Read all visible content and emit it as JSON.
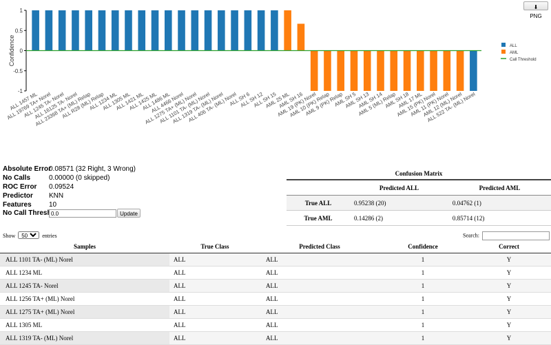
{
  "export_button": {
    "label": "PNG",
    "icon": "download-icon"
  },
  "chart_data": {
    "type": "bar",
    "ylabel": "Confidence",
    "ylim": [
      -1,
      1
    ],
    "yticks": [
      "1",
      "0.5",
      "0",
      "-0.5",
      "-1"
    ],
    "call_threshold": 0,
    "categories": [
      "ALL 1457 ML",
      "ALL 19769 TA+ Norel",
      "ALL 1245 TA- Norel",
      "ALL 16125 TA- Norel",
      "ALL 23368 TA+ (ML) Relap",
      "ALL R28 (ML) Relap",
      "ALL 1234 ML",
      "ALL 1305 ML",
      "ALL 1421 ML",
      "ALL 1425 ML",
      "ALL 1486 ML",
      "ALL 4466 Norel",
      "ALL 1275 TA+ (ML) Norel",
      "ALL 1101 TA- (ML) Norel",
      "ALL 1319 TA- (ML) Norel",
      "ALL 406 TA- (ML) Norel",
      "ALL SH 6",
      "ALL SH 12",
      "ALL SH 15",
      "AML 25 ML",
      "AML SH 16",
      "AML 19 (PK) Norel",
      "AML 10 (PK) Relap",
      "AML 9 (PK) Relap",
      "AML SH 5",
      "AML SH 13",
      "AML SH 14",
      "AML 5 (ML) Relap",
      "AML SH 18",
      "AML 17 ML",
      "AML 15 (PK) Norel",
      "AML 11 (PK) Norel",
      "AML 12 (ML) Norel",
      "ALL 522 TA- (ML) Norel"
    ],
    "values": [
      1,
      1,
      1,
      1,
      1,
      1,
      1,
      1,
      1,
      1,
      1,
      1,
      1,
      1,
      1,
      1,
      1,
      1,
      1,
      1,
      0.667,
      -1,
      -1,
      -1,
      -1,
      -1,
      -1,
      -1,
      -1,
      -1,
      -1,
      -1,
      -1,
      -1
    ],
    "classes": [
      "ALL",
      "ALL",
      "ALL",
      "ALL",
      "ALL",
      "ALL",
      "ALL",
      "ALL",
      "ALL",
      "ALL",
      "ALL",
      "ALL",
      "ALL",
      "ALL",
      "ALL",
      "ALL",
      "ALL",
      "ALL",
      "ALL",
      "AML",
      "AML",
      "AML",
      "AML",
      "AML",
      "AML",
      "AML",
      "AML",
      "AML",
      "AML",
      "AML",
      "AML",
      "AML",
      "AML",
      "ALL"
    ],
    "legend": [
      {
        "name": "ALL",
        "color": "#1f77b4",
        "kind": "square"
      },
      {
        "name": "AML",
        "color": "#ff7f0e",
        "kind": "square"
      },
      {
        "name": "Call Threshold",
        "color": "#2ca02c",
        "kind": "line"
      }
    ],
    "legend_position": "right",
    "grid": false
  },
  "stats": [
    {
      "label": "Absolute Error",
      "value": "0.08571 (32 Right, 3 Wrong)"
    },
    {
      "label": "No Calls",
      "value": "0.00000 (0 skipped)"
    },
    {
      "label": "ROC Error",
      "value": "0.09524"
    },
    {
      "label": "Predictor",
      "value": "KNN"
    },
    {
      "label": "Features",
      "value": "10"
    }
  ],
  "no_call": {
    "label": "No Call Threshold",
    "value": "0.0",
    "button": "Update"
  },
  "confusion": {
    "title": "Confusion Matrix",
    "cols": [
      "",
      "Predicted ALL",
      "Predicted AML"
    ],
    "rows": [
      {
        "label": "True ALL",
        "cells": [
          "0.95238 (20)",
          "0.04762 (1)"
        ]
      },
      {
        "label": "True AML",
        "cells": [
          "0.14286 (2)",
          "0.85714 (12)"
        ]
      }
    ]
  },
  "datatable": {
    "show": "Show",
    "length": "50",
    "entries": "entries",
    "search_label": "Search:",
    "search_value": "",
    "headers": [
      "Samples",
      "True Class",
      "Predicted Class",
      "Confidence",
      "Correct"
    ],
    "rows": [
      [
        "ALL 1101 TA- (ML) Norel",
        "ALL",
        "ALL",
        "1",
        "Y"
      ],
      [
        "ALL 1234 ML",
        "ALL",
        "ALL",
        "1",
        "Y"
      ],
      [
        "ALL 1245 TA- Norel",
        "ALL",
        "ALL",
        "1",
        "Y"
      ],
      [
        "ALL 1256 TA+ (ML) Norel",
        "ALL",
        "ALL",
        "1",
        "Y"
      ],
      [
        "ALL 1275 TA+ (ML) Norel",
        "ALL",
        "ALL",
        "1",
        "Y"
      ],
      [
        "ALL 1305 ML",
        "ALL",
        "ALL",
        "1",
        "Y"
      ],
      [
        "ALL 1319 TA- (ML) Norel",
        "ALL",
        "ALL",
        "1",
        "Y"
      ]
    ]
  }
}
